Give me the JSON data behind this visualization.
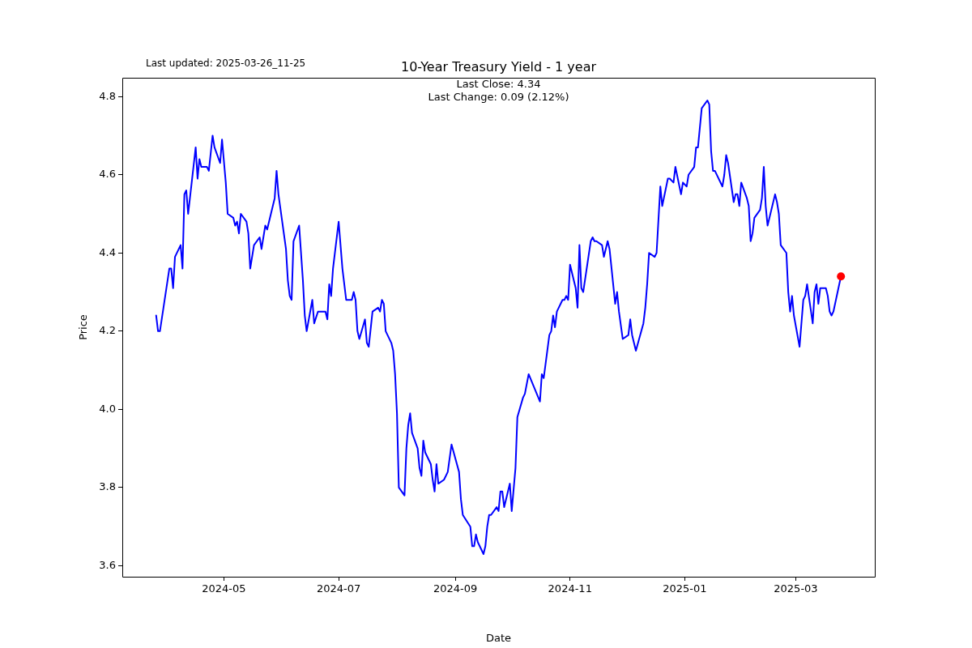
{
  "chart_data": {
    "type": "line",
    "title": "10-Year Treasury Yield - 1 year",
    "xlabel": "Date",
    "ylabel": "Price",
    "annotations": [
      "Last updated: 2025-03-26_11-25",
      "Last Close: 4.34",
      "Last Change: 0.09 (2.12%)"
    ],
    "xlim": [
      "2024-03-08",
      "2025-04-12"
    ],
    "xticks": [
      "2024-05",
      "2024-07",
      "2024-09",
      "2024-11",
      "2025-01",
      "2025-03"
    ],
    "ylim": [
      3.572,
      4.848
    ],
    "yticks": [
      3.6,
      3.8,
      {
        "value": 4,
        "label": "4.0"
      },
      4.2,
      4.4,
      4.6,
      4.8
    ],
    "grid": false,
    "legend": false,
    "series": [
      {
        "type": "line",
        "color": "#0000ff",
        "marker": "none",
        "line_style": "solid",
        "x": [
          "2024-03-26",
          "2024-03-27",
          "2024-03-28",
          "2024-04-02",
          "2024-04-03",
          "2024-04-04",
          "2024-04-05",
          "2024-04-08",
          "2024-04-09",
          "2024-04-10",
          "2024-04-11",
          "2024-04-12",
          "2024-04-16",
          "2024-04-17",
          "2024-04-18",
          "2024-04-19",
          "2024-04-22",
          "2024-04-23",
          "2024-04-25",
          "2024-04-26",
          "2024-04-29",
          "2024-04-30",
          "2024-05-02",
          "2024-05-03",
          "2024-05-06",
          "2024-05-07",
          "2024-05-08",
          "2024-05-09",
          "2024-05-10",
          "2024-05-13",
          "2024-05-14",
          "2024-05-15",
          "2024-05-17",
          "2024-05-20",
          "2024-05-21",
          "2024-05-23",
          "2024-05-24",
          "2024-05-28",
          "2024-05-29",
          "2024-05-30",
          "2024-06-03",
          "2024-06-04",
          "2024-06-05",
          "2024-06-06",
          "2024-06-07",
          "2024-06-10",
          "2024-06-12",
          "2024-06-13",
          "2024-06-14",
          "2024-06-17",
          "2024-06-18",
          "2024-06-20",
          "2024-06-24",
          "2024-06-25",
          "2024-06-26",
          "2024-06-27",
          "2024-06-28",
          "2024-07-01",
          "2024-07-03",
          "2024-07-05",
          "2024-07-08",
          "2024-07-09",
          "2024-07-10",
          "2024-07-11",
          "2024-07-12",
          "2024-07-15",
          "2024-07-16",
          "2024-07-17",
          "2024-07-19",
          "2024-07-22",
          "2024-07-23",
          "2024-07-24",
          "2024-07-25",
          "2024-07-26",
          "2024-07-29",
          "2024-07-30",
          "2024-07-31",
          "2024-08-01",
          "2024-08-02",
          "2024-08-05",
          "2024-08-06",
          "2024-08-07",
          "2024-08-08",
          "2024-08-09",
          "2024-08-12",
          "2024-08-13",
          "2024-08-14",
          "2024-08-15",
          "2024-08-16",
          "2024-08-19",
          "2024-08-20",
          "2024-08-21",
          "2024-08-22",
          "2024-08-23",
          "2024-08-26",
          "2024-08-28",
          "2024-08-30",
          "2024-09-03",
          "2024-09-04",
          "2024-09-05",
          "2024-09-09",
          "2024-09-10",
          "2024-09-11",
          "2024-09-12",
          "2024-09-13",
          "2024-09-16",
          "2024-09-17",
          "2024-09-18",
          "2024-09-19",
          "2024-09-20",
          "2024-09-23",
          "2024-09-24",
          "2024-09-25",
          "2024-09-26",
          "2024-09-27",
          "2024-09-30",
          "2024-10-01",
          "2024-10-03",
          "2024-10-04",
          "2024-10-07",
          "2024-10-08",
          "2024-10-10",
          "2024-10-16",
          "2024-10-17",
          "2024-10-18",
          "2024-10-21",
          "2024-10-22",
          "2024-10-23",
          "2024-10-24",
          "2024-10-25",
          "2024-10-28",
          "2024-10-29",
          "2024-10-30",
          "2024-10-31",
          "2024-11-01",
          "2024-11-04",
          "2024-11-05",
          "2024-11-06",
          "2024-11-07",
          "2024-11-08",
          "2024-11-12",
          "2024-11-13",
          "2024-11-14",
          "2024-11-15",
          "2024-11-18",
          "2024-11-19",
          "2024-11-21",
          "2024-11-22",
          "2024-11-25",
          "2024-11-26",
          "2024-11-27",
          "2024-11-29",
          "2024-12-02",
          "2024-12-03",
          "2024-12-04",
          "2024-12-06",
          "2024-12-10",
          "2024-12-11",
          "2024-12-12",
          "2024-12-13",
          "2024-12-16",
          "2024-12-17",
          "2024-12-19",
          "2024-12-20",
          "2024-12-23",
          "2024-12-24",
          "2024-12-26",
          "2024-12-27",
          "2024-12-30",
          "2024-12-31",
          "2025-01-02",
          "2025-01-03",
          "2025-01-06",
          "2025-01-07",
          "2025-01-08",
          "2025-01-10",
          "2025-01-13",
          "2025-01-14",
          "2025-01-15",
          "2025-01-16",
          "2025-01-17",
          "2025-01-21",
          "2025-01-22",
          "2025-01-23",
          "2025-01-24",
          "2025-01-27",
          "2025-01-28",
          "2025-01-29",
          "2025-01-30",
          "2025-01-31",
          "2025-02-03",
          "2025-02-04",
          "2025-02-05",
          "2025-02-06",
          "2025-02-07",
          "2025-02-10",
          "2025-02-11",
          "2025-02-12",
          "2025-02-13",
          "2025-02-14",
          "2025-02-18",
          "2025-02-19",
          "2025-02-20",
          "2025-02-21",
          "2025-02-24",
          "2025-02-25",
          "2025-02-26",
          "2025-02-27",
          "2025-02-28",
          "2025-03-03",
          "2025-03-05",
          "2025-03-06",
          "2025-03-07",
          "2025-03-10",
          "2025-03-11",
          "2025-03-12",
          "2025-03-13",
          "2025-03-14",
          "2025-03-17",
          "2025-03-18",
          "2025-03-19",
          "2025-03-20",
          "2025-03-21",
          "2025-03-25"
        ],
        "values": [
          4.24,
          4.2,
          4.2,
          4.36,
          4.36,
          4.31,
          4.39,
          4.42,
          4.36,
          4.55,
          4.56,
          4.5,
          4.67,
          4.59,
          4.64,
          4.62,
          4.62,
          4.61,
          4.7,
          4.67,
          4.63,
          4.69,
          4.58,
          4.5,
          4.49,
          4.47,
          4.48,
          4.45,
          4.5,
          4.48,
          4.45,
          4.36,
          4.42,
          4.44,
          4.41,
          4.47,
          4.46,
          4.54,
          4.61,
          4.55,
          4.41,
          4.33,
          4.29,
          4.28,
          4.43,
          4.47,
          4.33,
          4.24,
          4.2,
          4.28,
          4.22,
          4.25,
          4.25,
          4.23,
          4.32,
          4.29,
          4.36,
          4.48,
          4.36,
          4.28,
          4.28,
          4.3,
          4.28,
          4.2,
          4.18,
          4.23,
          4.17,
          4.16,
          4.25,
          4.26,
          4.25,
          4.28,
          4.27,
          4.2,
          4.17,
          4.15,
          4.09,
          3.99,
          3.8,
          3.78,
          3.9,
          3.96,
          3.99,
          3.94,
          3.9,
          3.85,
          3.83,
          3.92,
          3.89,
          3.86,
          3.82,
          3.79,
          3.86,
          3.81,
          3.82,
          3.84,
          3.91,
          3.84,
          3.77,
          3.73,
          3.7,
          3.65,
          3.65,
          3.68,
          3.66,
          3.63,
          3.65,
          3.7,
          3.73,
          3.73,
          3.75,
          3.74,
          3.79,
          3.79,
          3.75,
          3.81,
          3.74,
          3.85,
          3.98,
          4.03,
          4.04,
          4.09,
          4.02,
          4.09,
          4.08,
          4.19,
          4.2,
          4.24,
          4.21,
          4.25,
          4.28,
          4.28,
          4.29,
          4.28,
          4.37,
          4.31,
          4.26,
          4.42,
          4.31,
          4.3,
          4.43,
          4.44,
          4.43,
          4.43,
          4.42,
          4.39,
          4.43,
          4.41,
          4.27,
          4.3,
          4.25,
          4.18,
          4.19,
          4.23,
          4.19,
          4.15,
          4.22,
          4.26,
          4.32,
          4.4,
          4.39,
          4.4,
          4.57,
          4.52,
          4.59,
          4.59,
          4.58,
          4.62,
          4.55,
          4.58,
          4.57,
          4.6,
          4.62,
          4.67,
          4.67,
          4.77,
          4.79,
          4.78,
          4.66,
          4.61,
          4.61,
          4.57,
          4.6,
          4.65,
          4.63,
          4.53,
          4.55,
          4.55,
          4.52,
          4.58,
          4.54,
          4.52,
          4.43,
          4.45,
          4.49,
          4.51,
          4.54,
          4.62,
          4.52,
          4.47,
          4.55,
          4.53,
          4.5,
          4.42,
          4.4,
          4.3,
          4.25,
          4.29,
          4.24,
          4.16,
          4.28,
          4.29,
          4.32,
          4.22,
          4.3,
          4.32,
          4.27,
          4.31,
          4.31,
          4.29,
          4.25,
          4.24,
          4.25,
          4.34
        ]
      },
      {
        "type": "scatter",
        "color": "#ff0000",
        "marker": "circle",
        "x": [
          "2025-03-25"
        ],
        "values": [
          4.34
        ]
      }
    ]
  }
}
